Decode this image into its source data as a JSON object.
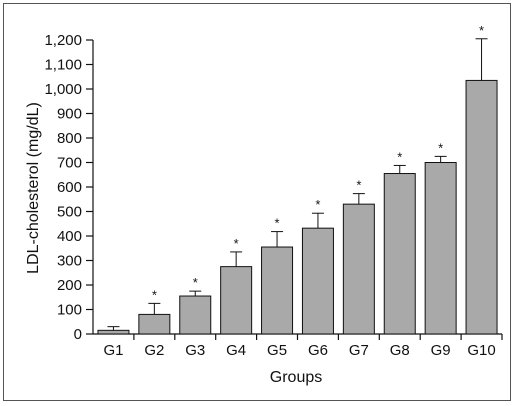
{
  "chart_data": {
    "type": "bar",
    "title": "",
    "xlabel": "Groups",
    "ylabel": "LDL-cholesterol (mg/dL)",
    "ylim": [
      0,
      1200
    ],
    "yticks": [
      0,
      100,
      200,
      300,
      400,
      500,
      600,
      700,
      800,
      900,
      1000,
      1100,
      1200
    ],
    "ytick_labels": [
      "0",
      "100",
      "200",
      "300",
      "400",
      "500",
      "600",
      "700",
      "800",
      "900",
      "1,000",
      "1,100",
      "1,200"
    ],
    "categories": [
      "G1",
      "G2",
      "G3",
      "G4",
      "G5",
      "G6",
      "G7",
      "G8",
      "G9",
      "G10"
    ],
    "values": [
      15,
      80,
      155,
      275,
      355,
      432,
      530,
      655,
      700,
      1035
    ],
    "error_upper": [
      30,
      125,
      175,
      335,
      418,
      493,
      573,
      688,
      725,
      1205
    ],
    "significance": [
      "",
      "*",
      "*",
      "*",
      "*",
      "*",
      "*",
      "*",
      "*",
      "*"
    ],
    "bar_color": "#a9a9a9",
    "grid": false
  }
}
